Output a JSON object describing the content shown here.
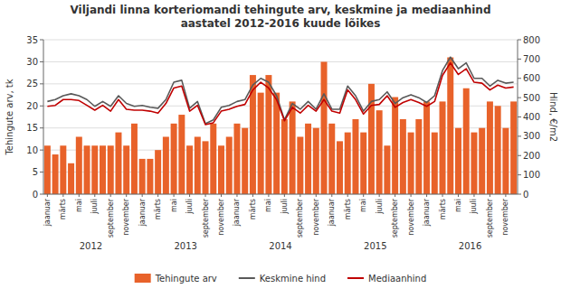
{
  "chart_data": {
    "type": "bar",
    "title": "Viljandi linna korteriomandi tehingute arv, keskmine ja mediaanhind\naastatel 2012-2016 kuude lõikes",
    "ylabel": "Tehingute arv, tk",
    "y2label": "Hind, €/m2",
    "categories": [
      "jaanuar",
      null,
      "märts",
      null,
      "mai",
      null,
      "juuli",
      null,
      "september",
      null,
      "november",
      null,
      "jaanuar",
      null,
      "märts",
      null,
      "mai",
      null,
      "juuli",
      null,
      "september",
      null,
      "november",
      null,
      "jaanuar",
      null,
      "märts",
      null,
      "mai",
      null,
      "juuli",
      null,
      "september",
      null,
      "november",
      null,
      "jaanuar",
      null,
      "märts",
      null,
      "mai",
      null,
      "juuli",
      null,
      "september",
      null,
      "november",
      null,
      "jaanuar",
      null,
      "märts",
      null,
      "mai",
      null,
      "juuli",
      null,
      "september",
      null,
      "november",
      null
    ],
    "annotations": [
      "2012",
      "2013",
      "2014",
      "2015",
      "2016"
    ],
    "series": [
      {
        "name": "Tehingute arv",
        "type": "bar",
        "color": "#E8622A",
        "values": [
          11,
          9,
          11,
          7,
          13,
          11,
          11,
          11,
          11,
          14,
          11,
          16,
          8,
          8,
          10,
          13,
          16,
          18,
          11,
          13,
          12,
          16,
          11,
          13,
          16,
          15,
          27,
          23,
          27,
          23,
          17,
          21,
          13,
          16,
          15,
          30,
          16,
          12,
          14,
          17,
          14,
          25,
          19,
          11,
          22,
          17,
          14,
          17,
          21,
          14,
          21,
          31,
          15,
          24,
          14,
          15,
          21,
          20,
          15,
          21
        ]
      },
      {
        "name": "Keskmine hind",
        "type": "line",
        "axis": "y2",
        "color": "#595959",
        "values": [
          480,
          490,
          510,
          520,
          510,
          490,
          455,
          480,
          455,
          510,
          470,
          455,
          460,
          450,
          445,
          490,
          580,
          590,
          445,
          480,
          365,
          385,
          450,
          460,
          480,
          490,
          565,
          600,
          580,
          510,
          385,
          470,
          440,
          480,
          440,
          520,
          440,
          440,
          560,
          510,
          430,
          480,
          490,
          530,
          470,
          500,
          515,
          500,
          475,
          510,
          640,
          710,
          650,
          680,
          600,
          600,
          560,
          590,
          575,
          580
        ]
      },
      {
        "name": "Mediaanhind",
        "type": "line",
        "axis": "y2",
        "color": "#C00000",
        "values": [
          455,
          460,
          490,
          490,
          485,
          460,
          435,
          460,
          430,
          490,
          440,
          435,
          435,
          430,
          420,
          470,
          550,
          560,
          430,
          460,
          360,
          370,
          430,
          440,
          455,
          465,
          540,
          580,
          550,
          490,
          380,
          450,
          420,
          460,
          430,
          490,
          430,
          420,
          540,
          490,
          415,
          460,
          465,
          510,
          450,
          475,
          490,
          475,
          455,
          480,
          615,
          680,
          620,
          650,
          580,
          575,
          540,
          565,
          550,
          555
        ]
      }
    ],
    "ylim": [
      0,
      35
    ],
    "yticks": [
      0,
      5,
      10,
      15,
      20,
      25,
      30,
      35
    ],
    "y2lim": [
      0,
      800
    ],
    "y2ticks": [
      0,
      100,
      200,
      300,
      400,
      500,
      600,
      700,
      800
    ],
    "grid": true,
    "legend": "bottom"
  }
}
